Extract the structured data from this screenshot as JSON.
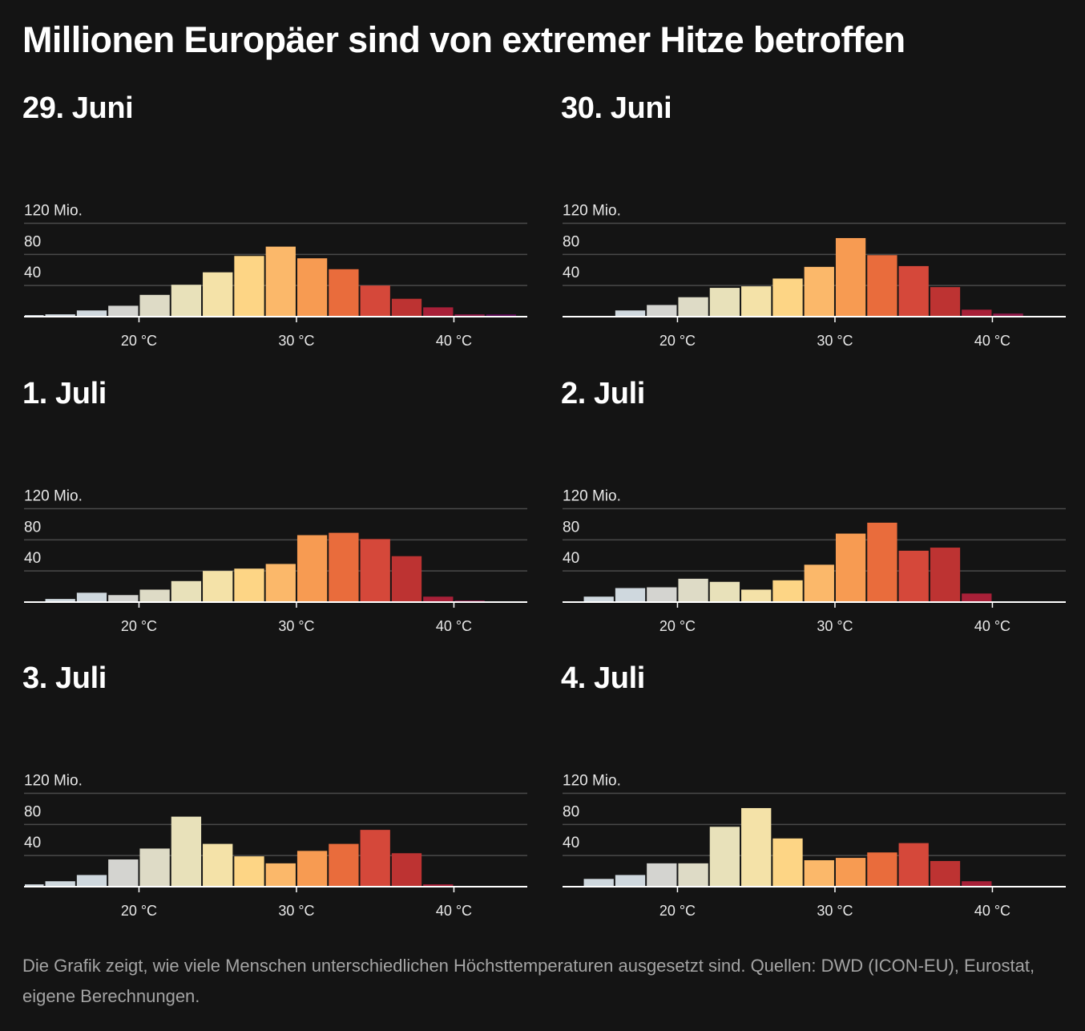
{
  "title": "Millionen Europäer sind von extremer Hitze betroffen",
  "footnote": "Die Grafik zeigt, wie viele Menschen unterschiedlichen Höchsttemperaturen ausgesetzt sind. Quellen: DWD (ICON-EU), Eurostat, eigene Berechnungen.",
  "colors": {
    "background": "#141414",
    "bins": [
      "#cfd8de",
      "#d4d4d0",
      "#dedbc6",
      "#e8e1ba",
      "#f4e2a8",
      "#fdd585",
      "#fbb86a",
      "#f79b52",
      "#e96c3c",
      "#d5483a",
      "#bd3332",
      "#a82038",
      "#8d1948",
      "#5b0a55"
    ]
  },
  "chart_data": [
    {
      "type": "bar",
      "title": "29. Juni",
      "bin_edges": [
        12,
        14,
        16,
        18,
        20,
        22,
        24,
        26,
        28,
        30,
        32,
        34,
        36,
        38,
        40,
        42,
        44
      ],
      "values": [
        2,
        3,
        8,
        14,
        28,
        41,
        57,
        78,
        90,
        75,
        61,
        40,
        23,
        12,
        3,
        3
      ],
      "ylim": [
        0,
        130
      ],
      "yticks": [
        40,
        80,
        120
      ],
      "ytick_labels": [
        "40",
        "80",
        "120 Mio."
      ],
      "xticks": [
        20,
        30,
        40
      ],
      "xtick_labels": [
        "20 °C",
        "30 °C",
        "40 °C"
      ]
    },
    {
      "type": "bar",
      "title": "30. Juni",
      "bin_edges": [
        12,
        14,
        16,
        18,
        20,
        22,
        24,
        26,
        28,
        30,
        32,
        34,
        36,
        38,
        40,
        42,
        44
      ],
      "values": [
        0,
        1,
        8,
        15,
        25,
        37,
        39,
        49,
        64,
        101,
        79,
        65,
        38,
        9,
        4,
        1
      ],
      "ylim": [
        0,
        130
      ],
      "yticks": [
        40,
        80,
        120
      ],
      "ytick_labels": [
        "40",
        "80",
        "120 Mio."
      ],
      "xticks": [
        20,
        30,
        40
      ],
      "xtick_labels": [
        "20 °C",
        "30 °C",
        "40 °C"
      ]
    },
    {
      "type": "bar",
      "title": "1. Juli",
      "bin_edges": [
        12,
        14,
        16,
        18,
        20,
        22,
        24,
        26,
        28,
        30,
        32,
        34,
        36,
        38,
        40,
        42,
        44
      ],
      "values": [
        0,
        4,
        12,
        9,
        16,
        27,
        40,
        43,
        49,
        86,
        89,
        81,
        59,
        7,
        2,
        0
      ],
      "ylim": [
        0,
        130
      ],
      "yticks": [
        40,
        80,
        120
      ],
      "ytick_labels": [
        "40",
        "80",
        "120 Mio."
      ],
      "xticks": [
        20,
        30,
        40
      ],
      "xtick_labels": [
        "20 °C",
        "30 °C",
        "40 °C"
      ]
    },
    {
      "type": "bar",
      "title": "2. Juli",
      "bin_edges": [
        12,
        14,
        16,
        18,
        20,
        22,
        24,
        26,
        28,
        30,
        32,
        34,
        36,
        38,
        40,
        42,
        44
      ],
      "values": [
        1,
        7,
        18,
        19,
        30,
        26,
        16,
        28,
        48,
        88,
        102,
        66,
        70,
        11,
        1,
        0
      ],
      "ylim": [
        0,
        130
      ],
      "yticks": [
        40,
        80,
        120
      ],
      "ytick_labels": [
        "40",
        "80",
        "120 Mio."
      ],
      "xticks": [
        20,
        30,
        40
      ],
      "xtick_labels": [
        "20 °C",
        "30 °C",
        "40 °C"
      ]
    },
    {
      "type": "bar",
      "title": "3. Juli",
      "bin_edges": [
        12,
        14,
        16,
        18,
        20,
        22,
        24,
        26,
        28,
        30,
        32,
        34,
        36,
        38,
        40,
        42,
        44
      ],
      "values": [
        3,
        7,
        15,
        35,
        49,
        90,
        55,
        39,
        30,
        46,
        55,
        73,
        43,
        3,
        0,
        0
      ],
      "ylim": [
        0,
        130
      ],
      "yticks": [
        40,
        80,
        120
      ],
      "ytick_labels": [
        "40",
        "80",
        "120 Mio."
      ],
      "xticks": [
        20,
        30,
        40
      ],
      "xtick_labels": [
        "20 °C",
        "30 °C",
        "40 °C"
      ]
    },
    {
      "type": "bar",
      "title": "4. Juli",
      "bin_edges": [
        12,
        14,
        16,
        18,
        20,
        22,
        24,
        26,
        28,
        30,
        32,
        34,
        36,
        38,
        40,
        42,
        44
      ],
      "values": [
        1,
        10,
        15,
        30,
        30,
        77,
        101,
        62,
        34,
        37,
        44,
        56,
        33,
        7,
        0,
        0
      ],
      "ylim": [
        0,
        130
      ],
      "yticks": [
        40,
        80,
        120
      ],
      "ytick_labels": [
        "40",
        "80",
        "120 Mio."
      ],
      "xticks": [
        20,
        30,
        40
      ],
      "xtick_labels": [
        "20 °C",
        "30 °C",
        "40 °C"
      ]
    }
  ]
}
